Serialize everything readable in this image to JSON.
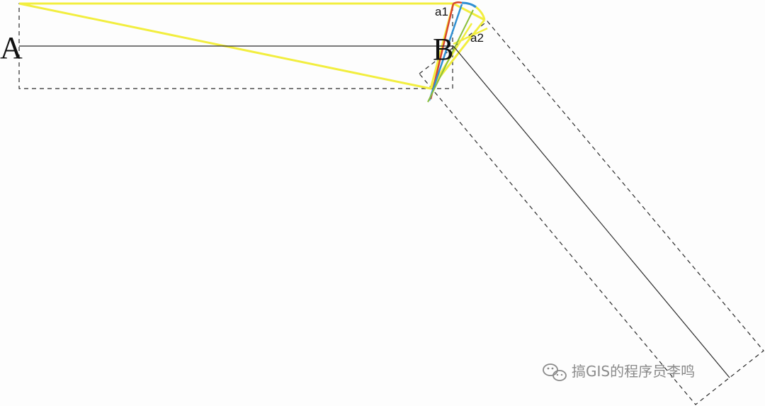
{
  "labels": {
    "point_a": "A",
    "point_b": "B",
    "angle_1": "a1",
    "angle_2": "a2"
  },
  "watermark": {
    "text": "搞GIS的程序员李鸣",
    "icon": "wechat-icon"
  },
  "colors": {
    "background": "#fdfdfd",
    "centerline": "#2b2b2b",
    "dashed_outline": "#2b2b2b",
    "wedge": "#f2ee3f",
    "arc_red": "#d9442b",
    "arc_blue": "#2f8fd1",
    "arc_green": "#8bbf3a",
    "watermark": "#8a8a8a"
  }
}
